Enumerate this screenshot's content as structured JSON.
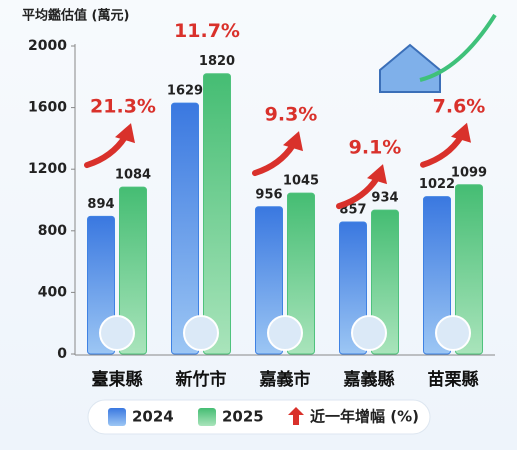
{
  "chart_data": {
    "type": "bar",
    "y_axis_label": "平均鑑估值 (萬元)",
    "categories": [
      "臺東縣",
      "新竹市",
      "嘉義市",
      "嘉義縣",
      "苗栗縣"
    ],
    "series": [
      {
        "name": "2024",
        "color": "#3f82e3",
        "values": [
          894,
          1629,
          956,
          857,
          1022
        ]
      },
      {
        "name": "2025",
        "color": "#4fc27d",
        "values": [
          1084,
          1820,
          1045,
          934,
          1099
        ]
      }
    ],
    "growth": {
      "name": "近一年增幅 (%)",
      "color": "#d9312b",
      "values": [
        21.3,
        11.7,
        9.3,
        9.1,
        7.6
      ],
      "value_labels": [
        "21.3%",
        "11.7%",
        "9.3%",
        "9.1%",
        "7.6%"
      ]
    },
    "ylim": [
      0,
      2000
    ],
    "yticks": [
      0,
      400,
      800,
      1200,
      1600,
      2000
    ],
    "grid": false
  }
}
